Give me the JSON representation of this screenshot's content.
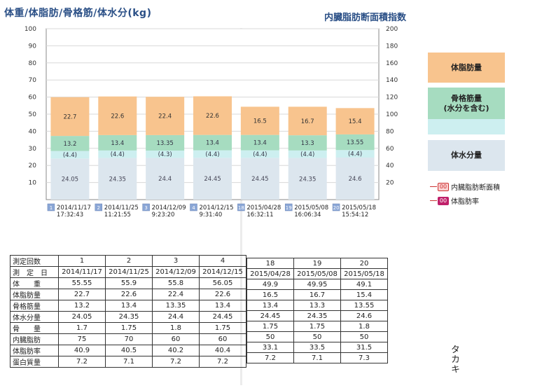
{
  "titles": {
    "left": "体重/体脂肪/骨格筋/体水分(kg)",
    "right": "内臓脂肪断面積指数"
  },
  "legend": {
    "fat": "体脂肪量",
    "muscle_line1": "骨格筋量",
    "muscle_line2": "(水分を含む)",
    "water": "体水分量",
    "visceral_badge": "00",
    "visceral": "内臓脂肪断面積",
    "fatrate_badge": "00",
    "fatrate": "体脂肪率"
  },
  "colors": {
    "fat": "#f8c48e",
    "muscle": "#a6dcc0",
    "minor": "#cdeff0",
    "water": "#dce6ee",
    "title": "#2a4f86"
  },
  "chart_data": {
    "type": "bar",
    "stacked": true,
    "left_axis": {
      "min": 0,
      "max": 100,
      "ticks": [
        10,
        20,
        30,
        40,
        50,
        60,
        70,
        80,
        90,
        100
      ]
    },
    "right_axis": {
      "min": 0,
      "max": 200,
      "ticks": [
        20,
        40,
        60,
        80,
        100,
        120,
        140,
        160,
        180,
        200
      ]
    },
    "grid": true,
    "categories": [
      {
        "index": "1",
        "date": "2014/11/17",
        "time": "17:32:43"
      },
      {
        "index": "2",
        "date": "2014/11/25",
        "time": "11:21:55"
      },
      {
        "index": "3",
        "date": "2014/12/09",
        "time": "9:23:20"
      },
      {
        "index": "4",
        "date": "2014/12/15",
        "time": "9:31:40"
      },
      {
        "index": "18",
        "date": "2015/04/28",
        "time": "16:32:11"
      },
      {
        "index": "19",
        "date": "2015/05/08",
        "time": "16:06:34"
      },
      {
        "index": "20",
        "date": "2015/05/18",
        "time": "15:54:12"
      }
    ],
    "series": [
      {
        "name": "体水分量",
        "values": [
          24.05,
          24.35,
          24.4,
          24.45,
          24.45,
          24.35,
          24.6
        ],
        "labels": [
          "24.05",
          "24.35",
          "24.4",
          "24.45",
          "24.45",
          "24.35",
          "24.6"
        ]
      },
      {
        "name": "",
        "values": [
          4.4,
          4.4,
          4.3,
          4.4,
          4.4,
          4.4,
          4.4
        ],
        "labels": [
          "(4.4)",
          "(4.4)",
          "(4.3)",
          "(4.4)",
          "(4.4)",
          "(4.4)",
          "(4.4)"
        ]
      },
      {
        "name": "骨格筋量",
        "values": [
          8.8,
          9.0,
          9.05,
          9.0,
          9.0,
          8.9,
          9.15
        ],
        "labels": [
          "13.2",
          "13.4",
          "13.35",
          "13.4",
          "13.4",
          "13.3",
          "13.55"
        ]
      },
      {
        "name": "体脂肪量",
        "values": [
          22.7,
          22.6,
          22.4,
          22.6,
          16.5,
          16.7,
          15.4
        ],
        "labels": [
          "22.7",
          "22.6",
          "22.4",
          "22.6",
          "16.5",
          "16.7",
          "15.4"
        ]
      }
    ]
  },
  "table": {
    "row_labels": [
      "測定回数",
      "測　定　日",
      "体　　重",
      "体脂肪量",
      "骨格筋量",
      "体水分量",
      "骨　　量",
      "内臓脂肪",
      "体脂肪率",
      "蛋白質量"
    ],
    "left_columns": [
      {
        "count": "1",
        "date": "2014/11/17",
        "values": [
          "55.55",
          "22.7",
          "13.2",
          "24.05",
          "1.7",
          "75",
          "40.9",
          "7.2"
        ]
      },
      {
        "count": "2",
        "date": "2014/11/25",
        "values": [
          "55.9",
          "22.6",
          "13.4",
          "24.35",
          "1.75",
          "70",
          "40.5",
          "7.1"
        ]
      },
      {
        "count": "3",
        "date": "2014/12/09",
        "values": [
          "55.8",
          "22.4",
          "13.35",
          "24.4",
          "1.8",
          "60",
          "40.2",
          "7.2"
        ]
      },
      {
        "count": "4",
        "date": "2014/12/15",
        "values": [
          "56.05",
          "22.6",
          "13.4",
          "24.45",
          "1.75",
          "60",
          "40.4",
          "7.2"
        ]
      }
    ],
    "right_columns": [
      {
        "count": "18",
        "date": "2015/04/28",
        "values": [
          "49.9",
          "16.5",
          "13.4",
          "24.45",
          "1.75",
          "50",
          "33.1",
          "7.2"
        ]
      },
      {
        "count": "19",
        "date": "2015/05/08",
        "values": [
          "49.95",
          "16.7",
          "13.3",
          "24.35",
          "1.75",
          "50",
          "33.5",
          "7.1"
        ]
      },
      {
        "count": "20",
        "date": "2015/05/18",
        "values": [
          "49.1",
          "15.4",
          "13.55",
          "24.6",
          "1.8",
          "50",
          "31.5",
          "7.3"
        ]
      }
    ]
  },
  "signature": "タカキ"
}
